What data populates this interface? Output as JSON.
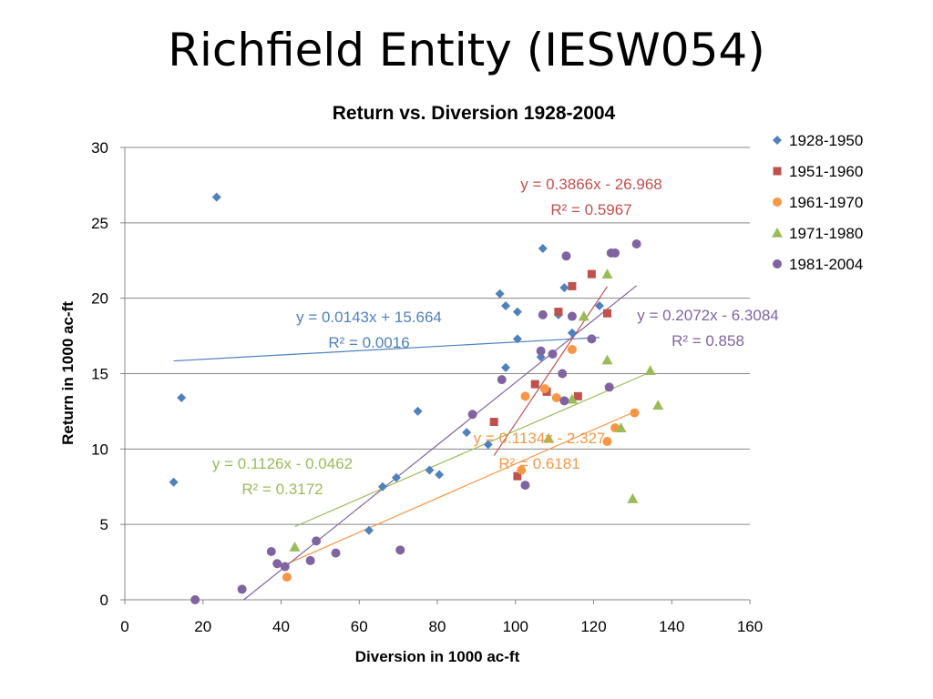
{
  "slide_title": "Richfield Entity (IESW054)",
  "chart_data": {
    "type": "scatter",
    "title": "Return vs. Diversion 1928-2004",
    "xlabel": "Diversion in 1000 ac-ft",
    "ylabel": "Return in 1000 ac-ft",
    "xlim": [
      0,
      160
    ],
    "ylim": [
      0,
      30
    ],
    "x_ticks": [
      0,
      20,
      40,
      60,
      80,
      100,
      120,
      140,
      160
    ],
    "y_ticks": [
      0,
      5,
      10,
      15,
      20,
      25,
      30
    ],
    "grid": "horizontal",
    "legend_position": "right",
    "series": [
      {
        "name": "1928-1950",
        "color": "#4f81bd",
        "marker": "diamond",
        "points": [
          [
            12.5,
            7.8
          ],
          [
            14.5,
            13.4
          ],
          [
            23.5,
            26.7
          ],
          [
            62.5,
            4.6
          ],
          [
            66,
            7.5
          ],
          [
            69.5,
            8.1
          ],
          [
            75,
            12.5
          ],
          [
            78,
            8.6
          ],
          [
            80.5,
            8.3
          ],
          [
            87.5,
            11.1
          ],
          [
            93,
            10.3
          ],
          [
            96,
            20.3
          ],
          [
            97.5,
            19.5
          ],
          [
            97.5,
            15.4
          ],
          [
            100.5,
            19.1
          ],
          [
            100.5,
            17.3
          ],
          [
            106.5,
            16.1
          ],
          [
            107,
            23.3
          ],
          [
            111,
            18.9
          ],
          [
            112.5,
            20.7
          ],
          [
            114.5,
            17.7
          ],
          [
            121.5,
            19.5
          ]
        ],
        "trendline": {
          "equation": "y = 0.0143x + 15.664",
          "r2": "R² = 0.0016",
          "slope": 0.0143,
          "intercept": 15.664,
          "x_range": [
            12.5,
            121.5
          ]
        }
      },
      {
        "name": "1951-1960",
        "color": "#c0504d",
        "marker": "square",
        "points": [
          [
            94.5,
            11.8
          ],
          [
            100.5,
            8.2
          ],
          [
            105,
            14.3
          ],
          [
            108,
            13.8
          ],
          [
            111,
            19.1
          ],
          [
            114.5,
            20.8
          ],
          [
            116,
            13.5
          ],
          [
            119.5,
            21.6
          ],
          [
            123.5,
            19
          ]
        ],
        "trendline": {
          "equation": "y = 0.3866x - 26.968",
          "r2": "R² = 0.5967",
          "slope": 0.3866,
          "intercept": -26.968,
          "x_range": [
            94.5,
            123.5
          ]
        }
      },
      {
        "name": "1961-1970",
        "color": "#f79646",
        "marker": "circle",
        "points": [
          [
            41.5,
            1.5
          ],
          [
            101.5,
            8.6
          ],
          [
            102.5,
            13.5
          ],
          [
            107.5,
            14
          ],
          [
            110.5,
            13.4
          ],
          [
            114.5,
            16.6
          ],
          [
            123.5,
            10.5
          ],
          [
            125.5,
            11.4
          ],
          [
            130.5,
            12.4
          ]
        ],
        "trendline": {
          "equation": "y = 0.1134x - 2.327",
          "r2": "R² = 0.6181",
          "slope": 0.1134,
          "intercept": -2.327,
          "x_range": [
            41.5,
            130.5
          ]
        }
      },
      {
        "name": "1971-1980",
        "color": "#9bbb59",
        "marker": "triangle",
        "points": [
          [
            43.5,
            3.5
          ],
          [
            108.5,
            10.7
          ],
          [
            114.5,
            13.3
          ],
          [
            117.5,
            18.8
          ],
          [
            123.5,
            21.6
          ],
          [
            123.5,
            15.9
          ],
          [
            127,
            11.4
          ],
          [
            130,
            6.7
          ],
          [
            134.5,
            15.2
          ],
          [
            136.5,
            12.9
          ]
        ],
        "trendline": {
          "equation": "y = 0.1126x - 0.0462",
          "r2": "R² = 0.3172",
          "slope": 0.1126,
          "intercept": -0.0462,
          "x_range": [
            43.5,
            134.5
          ]
        }
      },
      {
        "name": "1981-2004",
        "color": "#8064a2",
        "marker": "circle",
        "points": [
          [
            18,
            0
          ],
          [
            30,
            0.7
          ],
          [
            37.5,
            3.2
          ],
          [
            39,
            2.4
          ],
          [
            41,
            2.2
          ],
          [
            47.5,
            2.6
          ],
          [
            49,
            3.9
          ],
          [
            54,
            3.1
          ],
          [
            70.5,
            3.3
          ],
          [
            89,
            12.3
          ],
          [
            96.5,
            14.6
          ],
          [
            102.5,
            7.6
          ],
          [
            106.5,
            16.5
          ],
          [
            107,
            18.9
          ],
          [
            109.5,
            16.3
          ],
          [
            112,
            15
          ],
          [
            112.5,
            13.2
          ],
          [
            113,
            22.8
          ],
          [
            114.5,
            18.8
          ],
          [
            119.5,
            17.3
          ],
          [
            124,
            14.1
          ],
          [
            124.5,
            23
          ],
          [
            125.5,
            23
          ],
          [
            131,
            23.6
          ]
        ],
        "trendline": {
          "equation": "y = 0.2072x - 6.3084",
          "r2": "R² = 0.858",
          "slope": 0.2072,
          "intercept": -6.3084,
          "x_range": [
            30,
            131
          ]
        }
      }
    ]
  }
}
